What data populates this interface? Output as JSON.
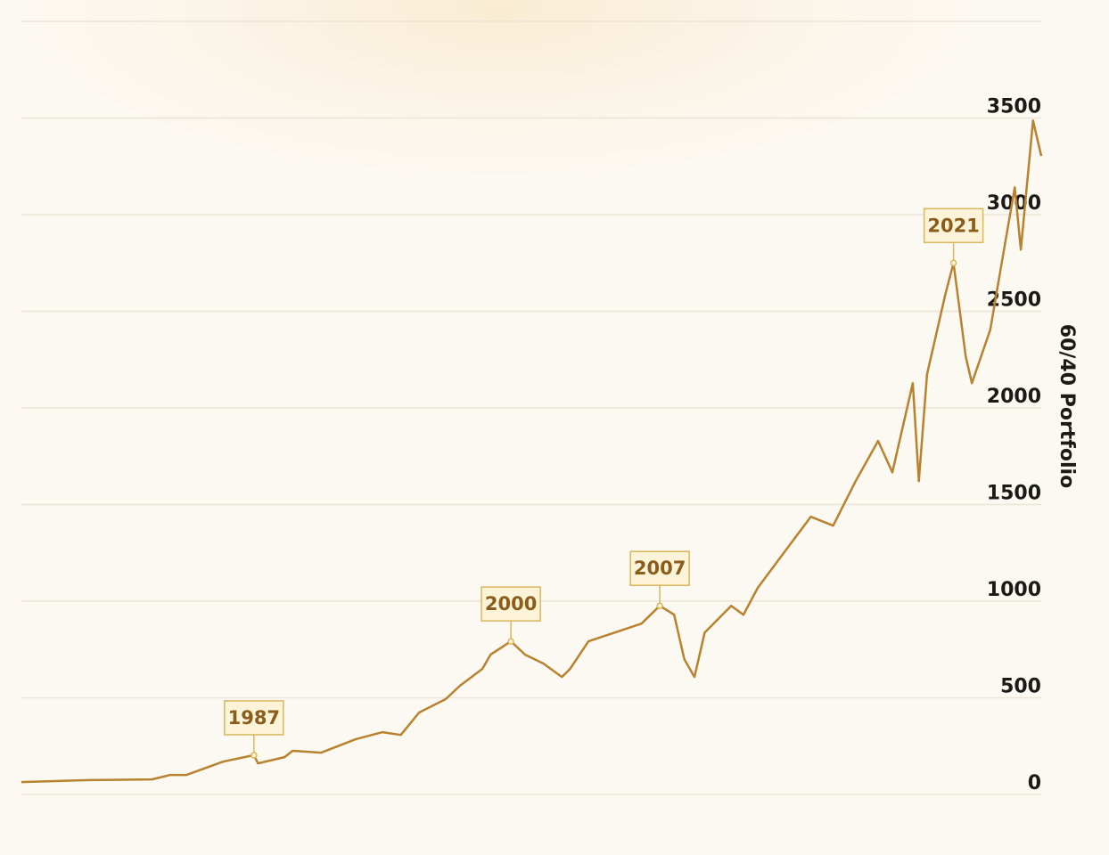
{
  "chart_data": {
    "type": "line",
    "y_axis_label": "60/40 Portfolio",
    "y_axis_side": "right",
    "color": "#b8822f",
    "grid": true,
    "x": [
      1976.0,
      1979.3,
      1982.4,
      1983.3,
      1984.1,
      1985.9,
      1987.4,
      1987.6,
      1988.9,
      1989.3,
      1990.7,
      1992.4,
      1993.7,
      1994.6,
      1995.5,
      1996.8,
      1997.5,
      1998.6,
      1999.0,
      2000.0,
      2000.7,
      2001.6,
      2002.5,
      2002.9,
      2003.8,
      2005.1,
      2006.4,
      2007.3,
      2008.0,
      2008.5,
      2009.0,
      2009.5,
      2010.8,
      2011.4,
      2012.1,
      2013.4,
      2014.7,
      2015.8,
      2016.9,
      2018.0,
      2018.7,
      2019.7,
      2020.0,
      2020.4,
      2021.3,
      2021.7,
      2022.3,
      2022.6,
      2023.5,
      2024.1,
      2024.7,
      2025.0,
      2025.6,
      2026.0
    ],
    "values": [
      64,
      74,
      78,
      101,
      101,
      170,
      203,
      161,
      193,
      226,
      216,
      286,
      322,
      308,
      424,
      493,
      562,
      650,
      723,
      792,
      723,
      677,
      608,
      650,
      792,
      838,
      884,
      976,
      930,
      700,
      608,
      838,
      976,
      930,
      1069,
      1253,
      1437,
      1391,
      1621,
      1829,
      1667,
      2128,
      1621,
      2174,
      2589,
      2750,
      2266,
      2128,
      2404,
      2773,
      3141,
      2819,
      3487,
      3303
    ],
    "xlim": [
      1976,
      2026
    ],
    "ylim": [
      0,
      4000
    ],
    "yticks": [
      0,
      500,
      1000,
      1500,
      2000,
      2500,
      3000,
      3500
    ],
    "annotations": [
      {
        "text": "1987",
        "x": 1987.4,
        "y": 203
      },
      {
        "text": "2000",
        "x": 2000.0,
        "y": 792
      },
      {
        "text": "2007",
        "x": 2007.3,
        "y": 976
      },
      {
        "text": "2021",
        "x": 2021.7,
        "y": 2750
      }
    ]
  }
}
